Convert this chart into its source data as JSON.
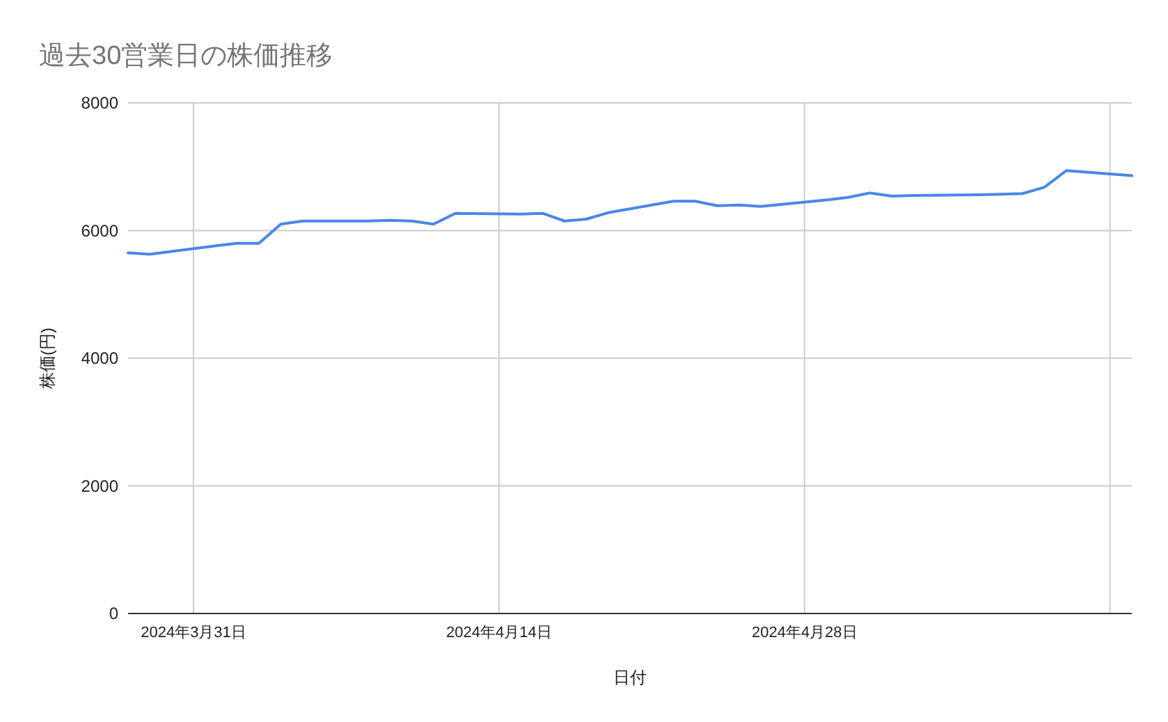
{
  "chart_data": {
    "type": "line",
    "title": "過去30営業日の株価推移",
    "xlabel": "日付",
    "ylabel": "株価(円)",
    "x": [
      "2024-03-28",
      "2024-03-29",
      "2024-04-01",
      "2024-04-02",
      "2024-04-03",
      "2024-04-04",
      "2024-04-05",
      "2024-04-08",
      "2024-04-09",
      "2024-04-10",
      "2024-04-11",
      "2024-04-12",
      "2024-04-15",
      "2024-04-16",
      "2024-04-17",
      "2024-04-18",
      "2024-04-19",
      "2024-04-22",
      "2024-04-23",
      "2024-04-24",
      "2024-04-25",
      "2024-04-26",
      "2024-04-29",
      "2024-04-30",
      "2024-05-01",
      "2024-05-02",
      "2024-05-03",
      "2024-05-06",
      "2024-05-07",
      "2024-05-08",
      "2024-05-09",
      "2024-05-10",
      "2024-05-13"
    ],
    "series": [
      {
        "color": "#4a86e8",
        "values": [
          5650,
          5630,
          5760,
          5800,
          5800,
          6100,
          6150,
          6150,
          6160,
          6150,
          6100,
          6270,
          6260,
          6270,
          6150,
          6180,
          6280,
          6460,
          6460,
          6390,
          6400,
          6380,
          6480,
          6520,
          6590,
          6540,
          6550,
          6560,
          6570,
          6580,
          6680,
          6940,
          6860
        ]
      }
    ],
    "xlim": [
      "2024-03-28",
      "2024-05-13"
    ],
    "ylim": [
      0,
      8000
    ],
    "yticks": [
      0,
      2000,
      4000,
      6000,
      8000
    ],
    "xticks": [
      {
        "value": "2024-03-31",
        "label": "2024年3月31日"
      },
      {
        "value": "2024-04-14",
        "label": "2024年4月14日"
      },
      {
        "value": "2024-04-28",
        "label": "2024年4月28日"
      },
      {
        "value": "2024-05-12",
        "label": null
      }
    ],
    "grid": true,
    "marker": "none",
    "line_style": "solid"
  }
}
